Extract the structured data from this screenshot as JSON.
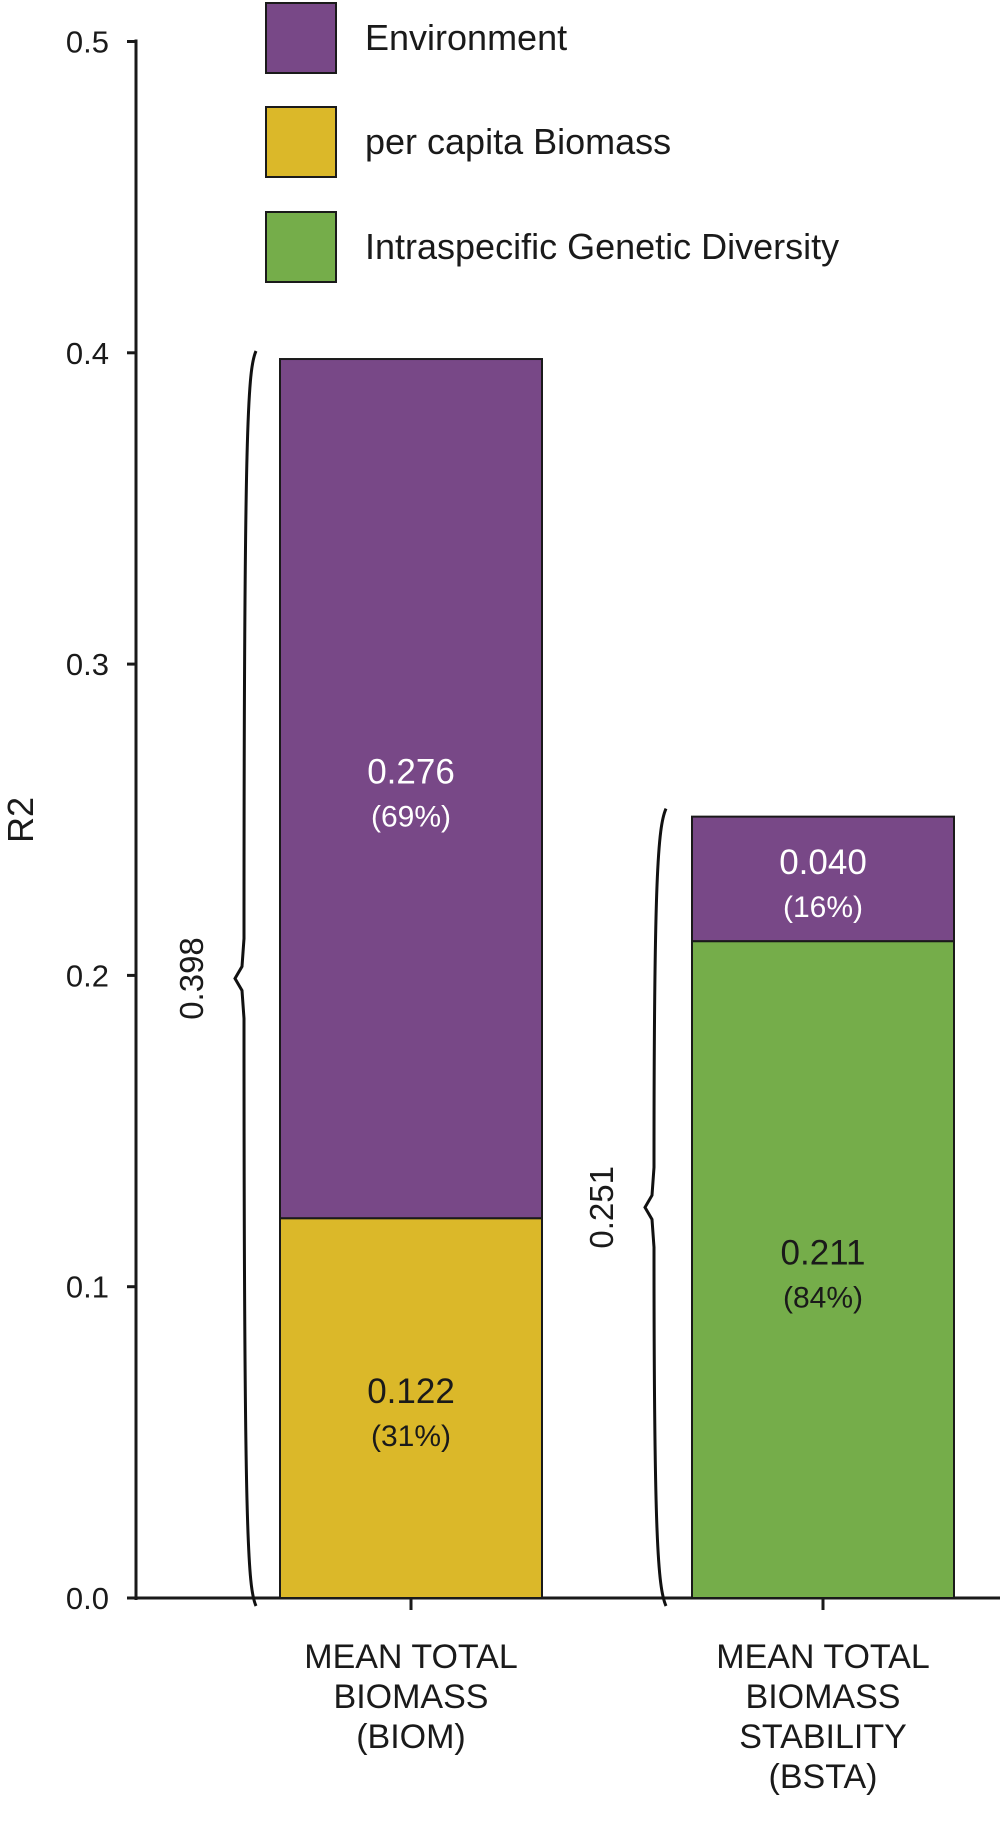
{
  "chart_data": {
    "type": "bar",
    "stacked": true,
    "ylabel": "R2",
    "xlabel": "",
    "ylim": [
      0,
      0.5
    ],
    "yticks": [
      0.0,
      0.1,
      0.2,
      0.3,
      0.4,
      0.5
    ],
    "ytick_labels": [
      "0.0",
      "0.1",
      "0.2",
      "0.3",
      "0.4",
      "0.5"
    ],
    "grid": false,
    "legend_position": "top",
    "categories": [
      [
        "MEAN TOTAL",
        "BIOMASS",
        "(BIOM)"
      ],
      [
        "MEAN TOTAL",
        "BIOMASS",
        "STABILITY",
        "(BSTA)"
      ]
    ],
    "series": [
      {
        "name": "Environment",
        "color": "#784887",
        "values": [
          0.276,
          0.04
        ],
        "labels": [
          "0.276",
          "0.040"
        ],
        "percent_labels": [
          "(69%)",
          "(16%)"
        ]
      },
      {
        "name": "per capita Biomass",
        "color": "#dbb829",
        "values": [
          0.122,
          0
        ],
        "labels": [
          "0.122",
          ""
        ],
        "percent_labels": [
          "(31%)",
          ""
        ]
      },
      {
        "name": "Intraspecific Genetic Diversity",
        "color": "#75ad4a",
        "values": [
          0,
          0.211
        ],
        "labels": [
          "",
          "0.211"
        ],
        "percent_labels": [
          "",
          "(84%)"
        ]
      }
    ],
    "stack_order": [
      [
        "per capita Biomass",
        "Environment"
      ],
      [
        "Intraspecific Genetic Diversity",
        "Environment"
      ]
    ],
    "totals": [
      0.398,
      0.251
    ],
    "total_labels": [
      "0.398",
      "0.251"
    ]
  }
}
